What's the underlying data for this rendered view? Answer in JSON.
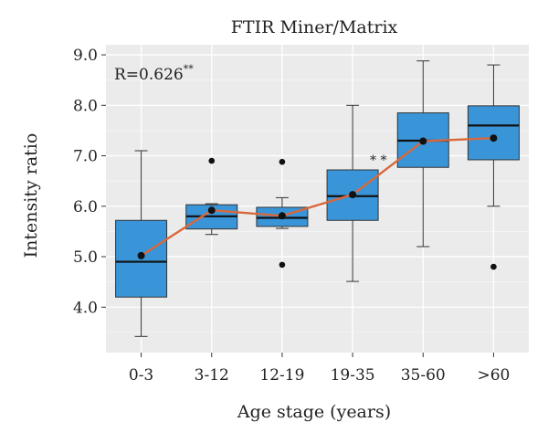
{
  "chart_data": {
    "type": "box",
    "title": "FTIR Miner/Matrix",
    "xlabel": "Age stage (years)",
    "ylabel": "Intensity ratio",
    "ylim": [
      3.1,
      9.2
    ],
    "yticks": [
      "4.0",
      "5.0",
      "6.0",
      "7.0",
      "8.0",
      "9.0"
    ],
    "grid": true,
    "categories": [
      "0-3",
      "3-12",
      "12-19",
      "19-35",
      "35-60",
      ">60"
    ],
    "boxes": [
      {
        "min": 3.42,
        "q1": 4.2,
        "median": 4.9,
        "q3": 5.72,
        "max": 7.1,
        "mean": 5.02,
        "outliers": []
      },
      {
        "min": 5.44,
        "q1": 5.55,
        "median": 5.8,
        "q3": 6.03,
        "max": 6.05,
        "mean": 5.92,
        "outliers": [
          6.9
        ]
      },
      {
        "min": 5.56,
        "q1": 5.6,
        "median": 5.77,
        "q3": 5.98,
        "max": 6.17,
        "mean": 5.81,
        "outliers": [
          6.88,
          4.84
        ]
      },
      {
        "min": 4.51,
        "q1": 5.72,
        "median": 6.2,
        "q3": 6.72,
        "max": 8.0,
        "mean": 6.23,
        "outliers": []
      },
      {
        "min": 5.2,
        "q1": 6.77,
        "median": 7.3,
        "q3": 7.85,
        "max": 8.88,
        "mean": 7.29,
        "outliers": []
      },
      {
        "min": 6.0,
        "q1": 6.92,
        "median": 7.6,
        "q3": 7.99,
        "max": 8.8,
        "mean": 7.35,
        "outliers": [
          4.8
        ]
      }
    ],
    "mean_line_color": "#d9683b",
    "box_color": "#3a95d8",
    "annotation_r": "R=0.626",
    "annotation_r_sup": "**",
    "significance_marks": "* *"
  }
}
